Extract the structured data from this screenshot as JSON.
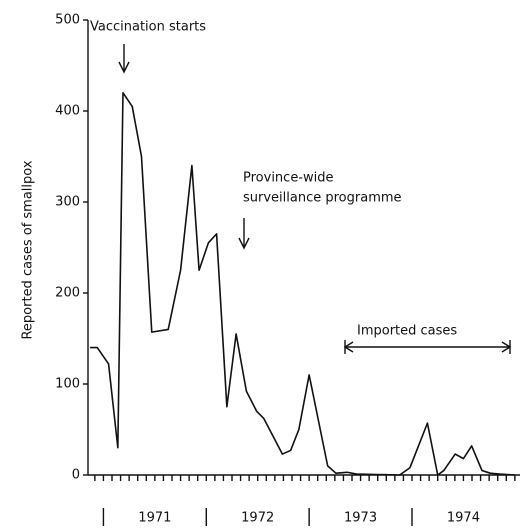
{
  "chart_data": {
    "type": "line",
    "ylabel": "Reported cases of smallpox",
    "annotations": [
      "Vaccination starts",
      "Province-wide",
      "surveillance programme",
      "Imported cases"
    ],
    "x": [
      1970.87,
      1970.94,
      1971.05,
      1971.14,
      1971.19,
      1971.28,
      1971.37,
      1971.47,
      1971.63,
      1971.75,
      1971.86,
      1971.93,
      1972.02,
      1972.1,
      1972.2,
      1972.29,
      1972.39,
      1972.49,
      1972.56,
      1972.74,
      1972.82,
      1972.9,
      1973.0,
      1973.09,
      1973.18,
      1973.26,
      1973.37,
      1973.46,
      1973.88,
      1973.98,
      1974.15,
      1974.25,
      1974.31,
      1974.42,
      1974.5,
      1974.58,
      1974.68,
      1974.76,
      1974.85,
      1975.0
    ],
    "series": [
      {
        "color": "#111111",
        "values": [
          140,
          140,
          122,
          30,
          420,
          405,
          350,
          157,
          160,
          225,
          340,
          225,
          255,
          265,
          75,
          155,
          92,
          70,
          62,
          23,
          27,
          50,
          110,
          60,
          10,
          2,
          3,
          1,
          0,
          8,
          57,
          0,
          5,
          23,
          18,
          32,
          5,
          2,
          1,
          0
        ]
      }
    ],
    "xlim": [
      1970.85,
      1975.05
    ],
    "xticks": [
      {
        "value": 1971.5,
        "label": "1971"
      },
      {
        "value": 1972.5,
        "label": "1972"
      },
      {
        "value": 1973.5,
        "label": "1973"
      },
      {
        "value": 1974.5,
        "label": "1974"
      }
    ],
    "ylim": [
      0,
      500
    ],
    "yticks": [
      0,
      100,
      200,
      300,
      400,
      500
    ]
  }
}
